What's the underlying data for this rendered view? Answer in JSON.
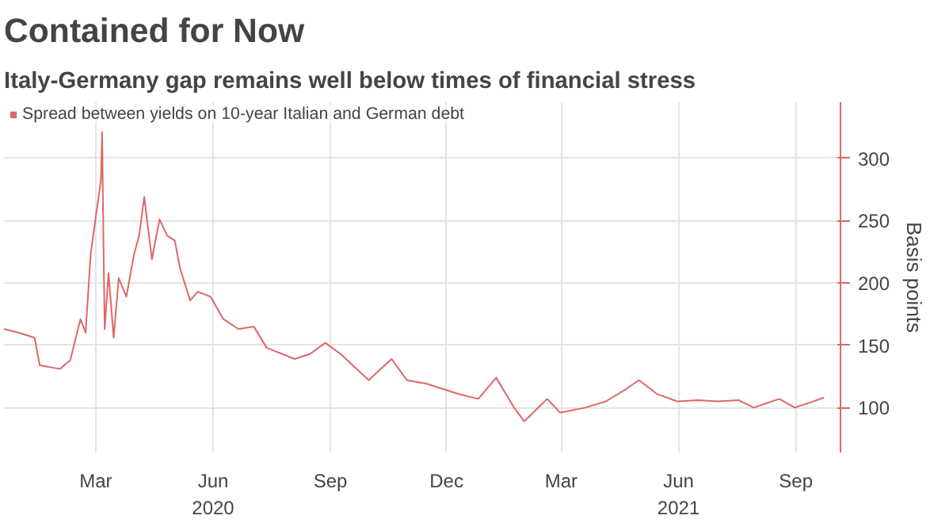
{
  "chart_data": {
    "type": "line",
    "title": "Contained for Now",
    "subtitle": "Italy-Germany gap remains well below times of financial stress",
    "ylabel": "Basis points",
    "legend": "top left",
    "grid": true,
    "xlim": [
      "2020-01-03",
      "2021-10-20"
    ],
    "ylim": [
      64,
      345
    ],
    "yticks": [
      100,
      150,
      200,
      250,
      300
    ],
    "xticks": [
      {
        "value": "2020-03-15",
        "label": "Mar"
      },
      {
        "value": "2020-06-15",
        "label": "Jun\n2020"
      },
      {
        "value": "2020-09-15",
        "label": "Sep"
      },
      {
        "value": "2020-12-15",
        "label": "Dec"
      },
      {
        "value": "2021-03-15",
        "label": "Mar"
      },
      {
        "value": "2021-06-15",
        "label": "Jun\n2021"
      },
      {
        "value": "2021-09-15",
        "label": "Sep"
      }
    ],
    "series": [
      {
        "name": "Spread between yields on 10-year Italian and German debt",
        "color": "#e06666",
        "x": [
          "2020-01-03",
          "2020-01-15",
          "2020-01-27",
          "2020-01-31",
          "2020-02-16",
          "2020-02-24",
          "2020-03-03",
          "2020-03-07",
          "2020-03-11",
          "2020-03-15",
          "2020-03-19",
          "2020-03-20",
          "2020-03-21",
          "2020-03-22",
          "2020-03-25",
          "2020-03-29",
          "2020-04-02",
          "2020-04-08",
          "2020-04-14",
          "2020-04-18",
          "2020-04-22",
          "2020-04-28",
          "2020-05-04",
          "2020-05-10",
          "2020-05-16",
          "2020-05-20",
          "2020-05-28",
          "2020-06-03",
          "2020-06-13",
          "2020-06-23",
          "2020-07-05",
          "2020-07-17",
          "2020-07-27",
          "2020-08-18",
          "2020-08-30",
          "2020-09-11",
          "2020-09-23",
          "2020-10-15",
          "2020-11-02",
          "2020-11-14",
          "2020-11-30",
          "2020-12-24",
          "2021-01-09",
          "2021-01-23",
          "2021-02-06",
          "2021-02-14",
          "2021-03-04",
          "2021-03-14",
          "2021-04-03",
          "2021-04-19",
          "2021-05-05",
          "2021-05-15",
          "2021-05-29",
          "2021-06-14",
          "2021-06-30",
          "2021-07-16",
          "2021-08-01",
          "2021-08-13",
          "2021-09-02",
          "2021-09-14",
          "2021-09-26",
          "2021-10-07"
        ],
        "values": [
          163,
          160,
          156,
          134,
          131,
          138,
          171,
          160,
          223,
          253,
          282,
          321,
          234,
          163,
          208,
          156,
          204,
          189,
          223,
          238,
          269,
          219,
          251,
          238,
          234,
          212,
          186,
          193,
          189,
          171,
          163,
          165,
          148,
          139,
          143,
          152,
          143,
          122,
          139,
          122,
          119,
          111,
          107,
          124,
          100,
          89,
          107,
          96,
          100,
          105,
          115,
          122,
          111,
          105,
          106,
          105,
          106,
          100,
          107,
          100,
          104,
          108
        ]
      }
    ]
  }
}
